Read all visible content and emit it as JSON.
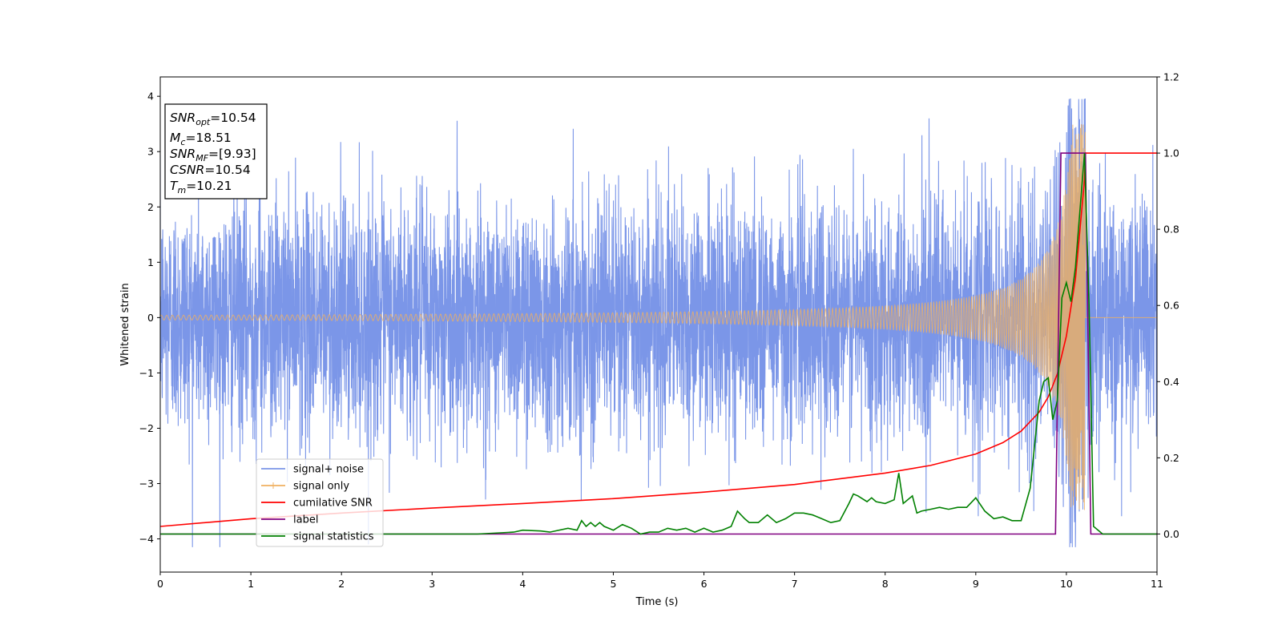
{
  "chart_data": {
    "type": "line",
    "title": "",
    "xlabel": "Time (s)",
    "ylabel": "Whitened strain",
    "xlim": [
      0,
      11
    ],
    "ylim_left": [
      -4.6,
      4.35
    ],
    "ylim_right": [
      -0.1,
      1.2
    ],
    "x_ticks": [
      0,
      1,
      2,
      3,
      4,
      5,
      6,
      7,
      8,
      9,
      10,
      11
    ],
    "y_ticks_left": [
      -4,
      -3,
      -2,
      -1,
      0,
      1,
      2,
      3,
      4
    ],
    "y_ticks_right": [
      0.0,
      0.2,
      0.4,
      0.6,
      0.8,
      1.0,
      1.2
    ],
    "legend_position": "lower-left",
    "annotation": {
      "lines": [
        {
          "sym": "SNR",
          "sub": "opt",
          "val": "=10.54"
        },
        {
          "sym": "M",
          "sub": "c",
          "val": "=18.51"
        },
        {
          "sym": "SNR",
          "sub": "MF",
          "val": "=[9.93]"
        },
        {
          "sym": "CSNR",
          "sub": "",
          "val": "=10.54"
        },
        {
          "sym": "T",
          "sub": "m",
          "val": "=10.21"
        }
      ]
    },
    "series": [
      {
        "name": "signal+ noise",
        "axis": "left",
        "color": "#7b96e8",
        "noise_std": 1.0,
        "noise_extremes": [
          -4.15,
          3.95
        ]
      },
      {
        "name": "signal only",
        "axis": "left",
        "color": "#f0b060",
        "merger_time": 10.21,
        "peak_amplitude": 3.5,
        "early_amplitude": 0.04
      },
      {
        "name": "cumilative SNR",
        "axis": "right",
        "color": "#ff0000",
        "x": [
          0,
          1,
          2,
          3,
          4,
          5,
          6,
          7,
          8,
          8.5,
          9,
          9.3,
          9.5,
          9.7,
          9.8,
          9.9,
          10.0,
          10.1,
          10.2,
          10.21,
          11
        ],
        "y": [
          0.02,
          0.04,
          0.055,
          0.068,
          0.08,
          0.093,
          0.11,
          0.13,
          0.16,
          0.18,
          0.21,
          0.24,
          0.27,
          0.32,
          0.36,
          0.42,
          0.52,
          0.67,
          0.93,
          1.0,
          1.0
        ]
      },
      {
        "name": "label",
        "axis": "right",
        "color": "#800080",
        "x": [
          0,
          9.88,
          9.94,
          10.21,
          10.27,
          11
        ],
        "y": [
          0,
          0,
          1,
          1,
          0,
          0
        ]
      },
      {
        "name": "signal statistics",
        "axis": "right",
        "color": "#008000",
        "x": [
          0,
          3.5,
          3.9,
          4.0,
          4.2,
          4.3,
          4.5,
          4.6,
          4.65,
          4.7,
          4.75,
          4.8,
          4.85,
          4.9,
          5.0,
          5.1,
          5.2,
          5.3,
          5.4,
          5.5,
          5.6,
          5.7,
          5.8,
          5.9,
          6.0,
          6.1,
          6.2,
          6.3,
          6.37,
          6.45,
          6.5,
          6.6,
          6.7,
          6.8,
          6.9,
          7.0,
          7.1,
          7.2,
          7.3,
          7.4,
          7.5,
          7.6,
          7.65,
          7.7,
          7.8,
          7.85,
          7.9,
          8.0,
          8.1,
          8.15,
          8.2,
          8.3,
          8.35,
          8.4,
          8.5,
          8.6,
          8.7,
          8.8,
          8.9,
          9.0,
          9.1,
          9.2,
          9.3,
          9.4,
          9.5,
          9.6,
          9.7,
          9.75,
          9.8,
          9.85,
          9.9,
          9.95,
          10.0,
          10.05,
          10.1,
          10.2,
          10.25,
          10.3,
          10.35,
          10.4,
          10.5,
          11
        ],
        "y": [
          0,
          0,
          0.005,
          0.01,
          0.008,
          0.005,
          0.015,
          0.01,
          0.035,
          0.02,
          0.03,
          0.02,
          0.03,
          0.02,
          0.01,
          0.025,
          0.015,
          0.0,
          0.005,
          0.005,
          0.015,
          0.01,
          0.015,
          0.005,
          0.015,
          0.005,
          0.01,
          0.02,
          0.06,
          0.04,
          0.03,
          0.03,
          0.05,
          0.03,
          0.04,
          0.055,
          0.055,
          0.05,
          0.04,
          0.03,
          0.035,
          0.08,
          0.105,
          0.1,
          0.085,
          0.095,
          0.085,
          0.08,
          0.09,
          0.16,
          0.08,
          0.1,
          0.055,
          0.06,
          0.065,
          0.07,
          0.065,
          0.07,
          0.07,
          0.095,
          0.06,
          0.04,
          0.045,
          0.035,
          0.035,
          0.12,
          0.35,
          0.4,
          0.41,
          0.3,
          0.35,
          0.62,
          0.66,
          0.61,
          0.7,
          1.0,
          0.6,
          0.02,
          0.01,
          0.0,
          0.0,
          0.0
        ]
      }
    ]
  }
}
